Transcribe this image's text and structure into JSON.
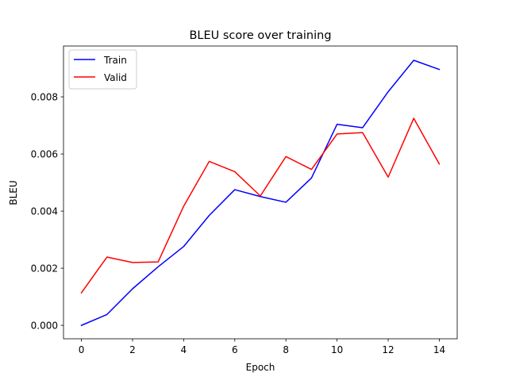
{
  "chart_data": {
    "type": "line",
    "title": "BLEU score over training",
    "xlabel": "Epoch",
    "ylabel": "BLEU",
    "x": [
      0,
      1,
      2,
      3,
      4,
      5,
      6,
      7,
      8,
      9,
      10,
      11,
      12,
      13,
      14
    ],
    "xlim": [
      -0.7,
      14.7
    ],
    "ylim": [
      -0.00047,
      0.00978
    ],
    "xticks": [
      0,
      2,
      4,
      6,
      8,
      10,
      12,
      14
    ],
    "xtick_labels": [
      "0",
      "2",
      "4",
      "6",
      "8",
      "10",
      "12",
      "14"
    ],
    "yticks": [
      0.0,
      0.002,
      0.004,
      0.006,
      0.008
    ],
    "ytick_labels": [
      "0.000",
      "0.002",
      "0.004",
      "0.006",
      "0.008"
    ],
    "grid": false,
    "legend_position": "top-left",
    "series": [
      {
        "name": "Train",
        "color": "#0000ff",
        "values": [
          0.0,
          0.00038,
          0.00128,
          0.00205,
          0.00276,
          0.00385,
          0.00475,
          0.00451,
          0.00431,
          0.00516,
          0.00704,
          0.00692,
          0.00818,
          0.00928,
          0.00896
        ]
      },
      {
        "name": "Valid",
        "color": "#ff0000",
        "values": [
          0.00114,
          0.00239,
          0.0022,
          0.00222,
          0.00417,
          0.00574,
          0.00538,
          0.00453,
          0.00591,
          0.00546,
          0.0067,
          0.00675,
          0.00519,
          0.00725,
          0.00565
        ]
      }
    ]
  }
}
